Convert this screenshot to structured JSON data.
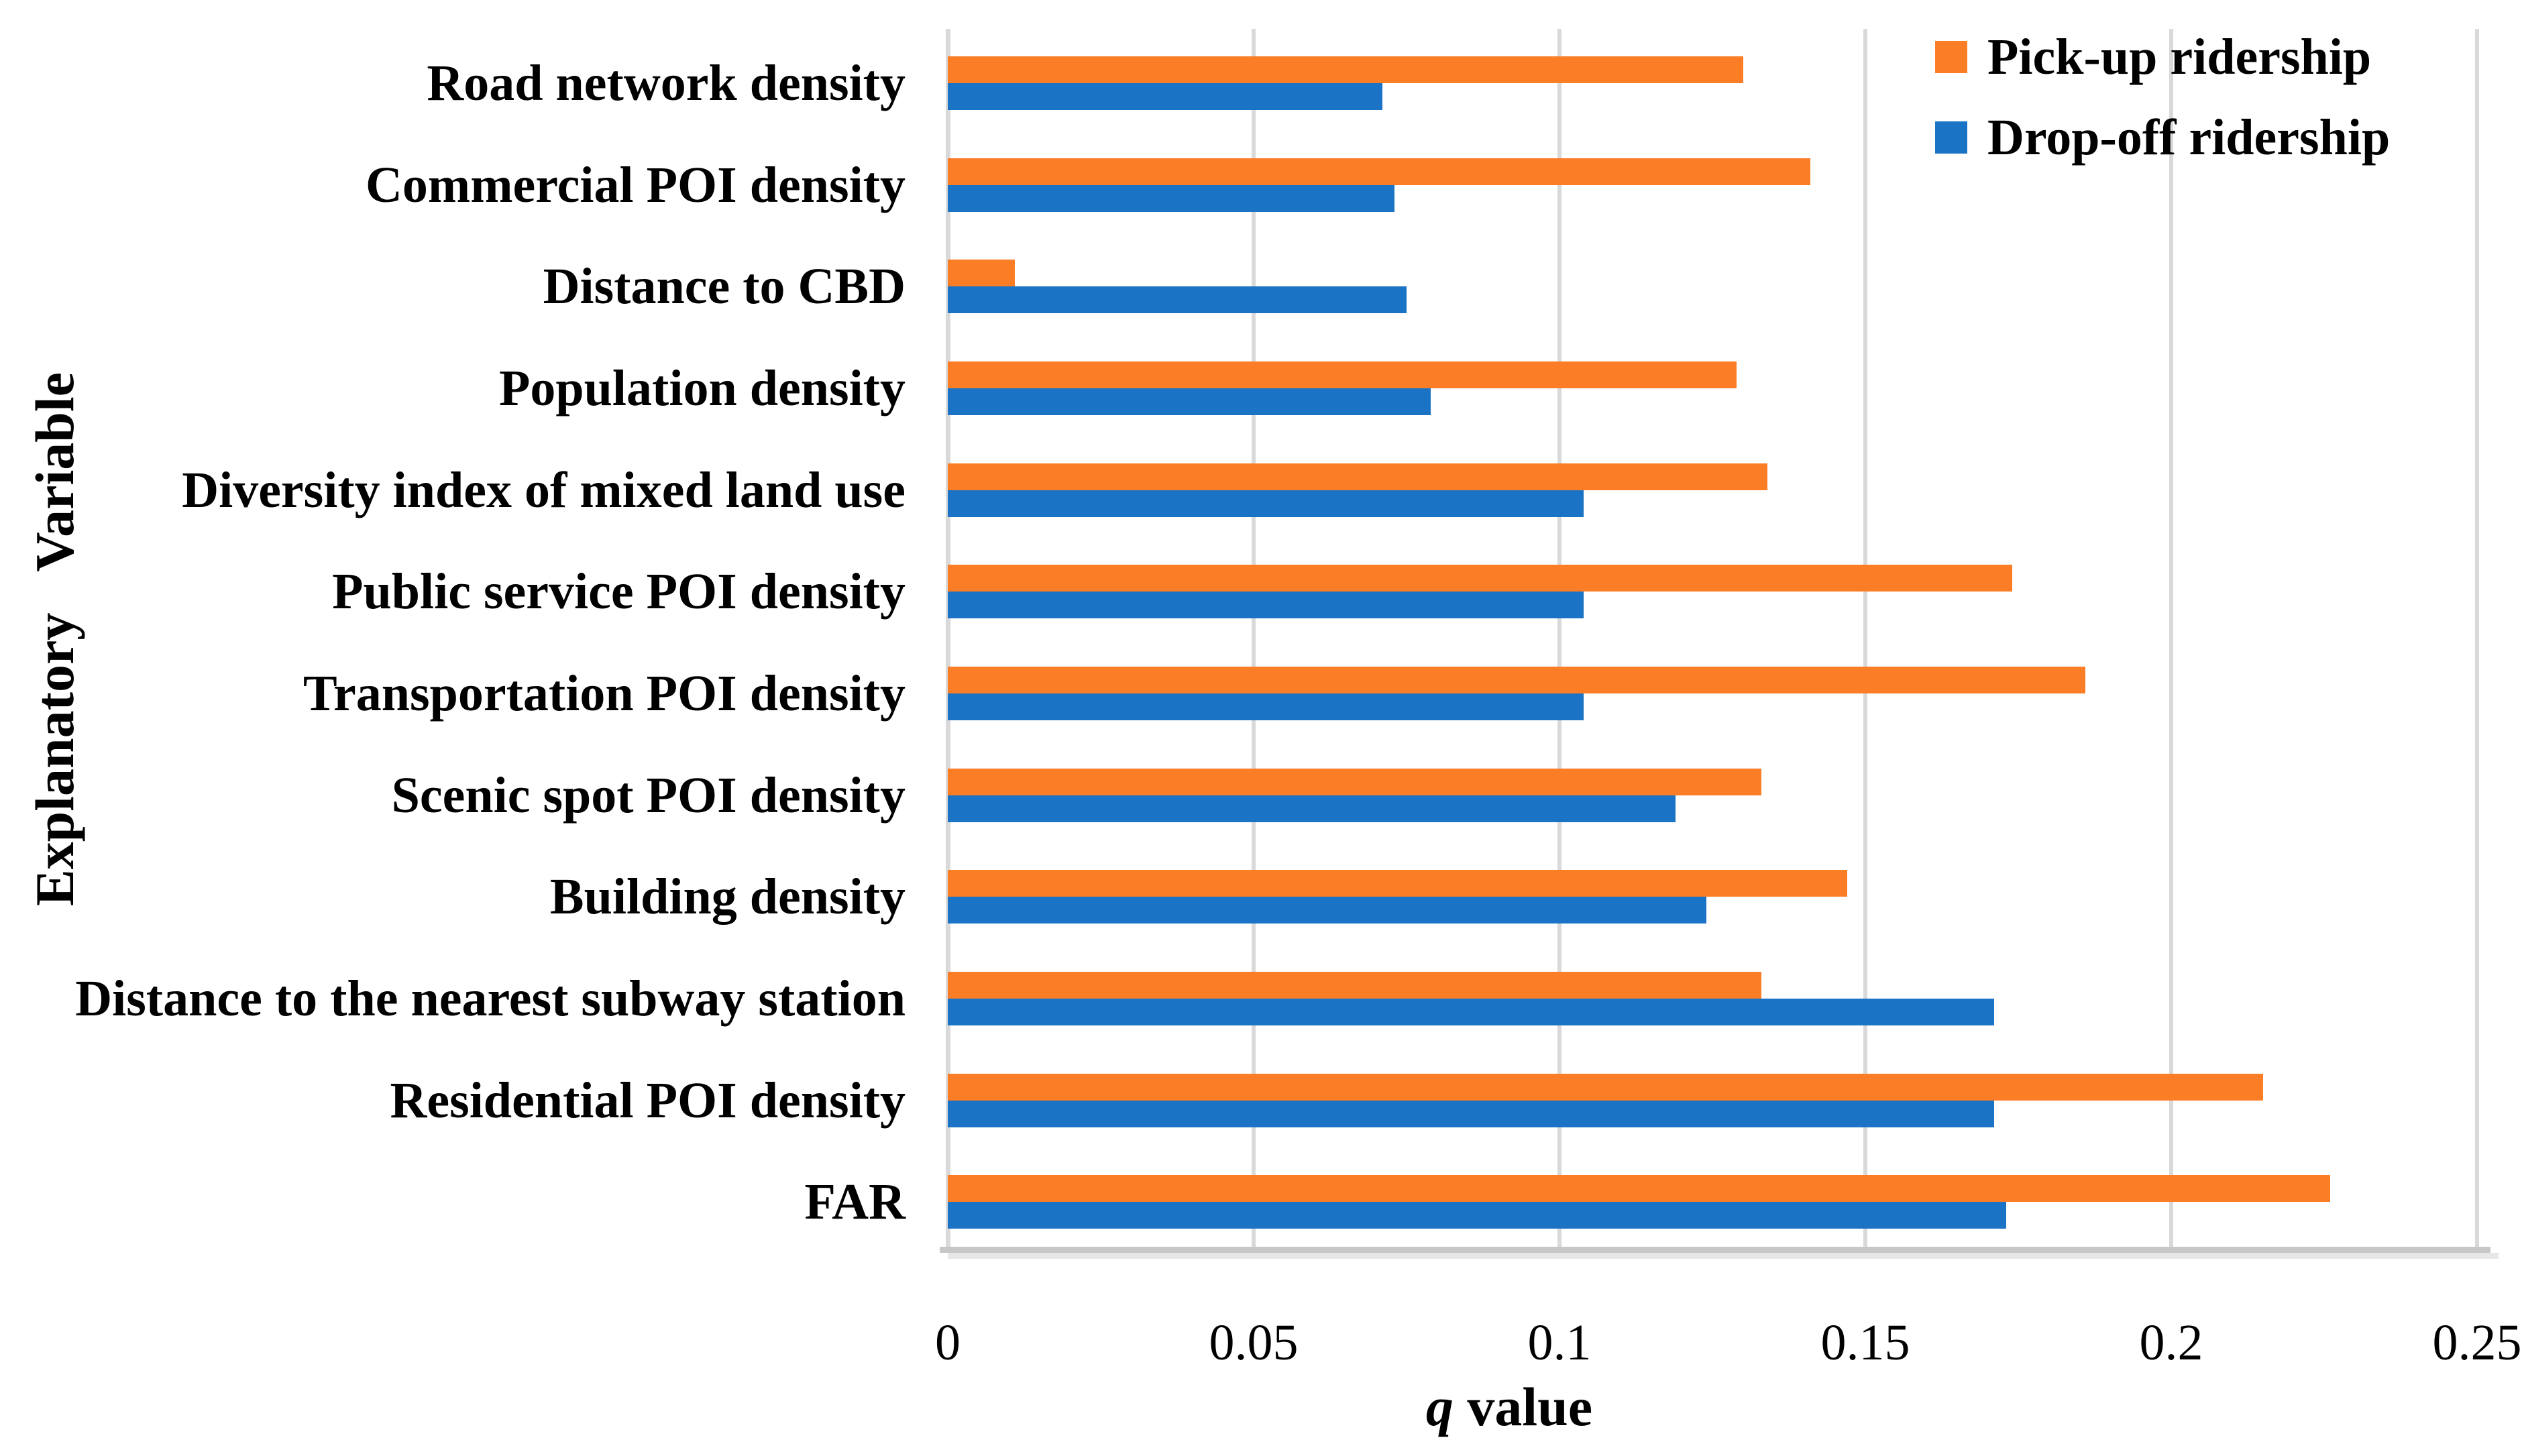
{
  "chart_data": {
    "type": "bar",
    "orientation": "horizontal",
    "title": "",
    "xlabel_q": "q",
    "xlabel_rest": " value",
    "ylabel": "Explanatory Variable",
    "xlim": [
      0,
      0.25
    ],
    "xticks": [
      "0",
      "0.05",
      "0.1",
      "0.15",
      "0.2",
      "0.25"
    ],
    "grid": "vertical",
    "legend_position": "top-right",
    "categories": [
      "Road network density",
      "Commercial POI density",
      "Distance to CBD",
      "Population density",
      "Diversity index of mixed land use",
      "Public service POI density",
      "Transportation POI density",
      "Scenic spot POI density",
      "Building density",
      "Distance to the nearest subway station",
      "Residential POI density",
      "FAR"
    ],
    "series": [
      {
        "name": "Pick-up ridership",
        "color": "#FB7D26",
        "values": [
          0.13,
          0.141,
          0.011,
          0.129,
          0.134,
          0.174,
          0.186,
          0.133,
          0.147,
          0.133,
          0.215,
          0.226
        ]
      },
      {
        "name": "Drop-off ridership",
        "color": "#1A73C4",
        "values": [
          0.071,
          0.073,
          0.075,
          0.079,
          0.104,
          0.104,
          0.104,
          0.119,
          0.124,
          0.171,
          0.171,
          0.173
        ]
      }
    ],
    "colors": {
      "gridline": "#D9D9D9",
      "axis_line": "#C7C7C7",
      "text": "#000000",
      "background": "#FFFFFF"
    }
  }
}
